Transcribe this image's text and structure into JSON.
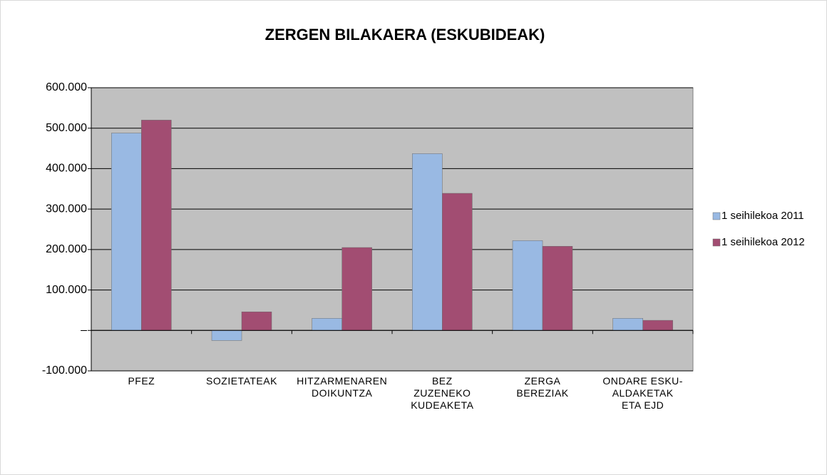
{
  "chart_data": {
    "type": "bar",
    "title": "ZERGEN BILAKAERA (ESKUBIDEAK)",
    "categories": [
      "PFEZ",
      "SOZIETATEAK",
      "HITZARMENAREN\nDOIKUNTZA",
      "BEZ\nZUZENEKO\nKUDEAKETA",
      "ZERGA\nBEREZIAK",
      "ONDARE ESKU-\nALDAKETAK\nETA EJD"
    ],
    "series": [
      {
        "name": "1 seihilekoa 2011",
        "color": "#99b9e3",
        "values": [
          488000,
          -25000,
          30000,
          437000,
          222000,
          30000
        ]
      },
      {
        "name": "1 seihilekoa 2012",
        "color": "#a24d72",
        "values": [
          520000,
          46000,
          205000,
          339000,
          208000,
          25000
        ]
      }
    ],
    "ylim": [
      -100000,
      600000
    ],
    "yticks": [
      {
        "value": -100000,
        "label": "-100.000"
      },
      {
        "value": 0,
        "label": "–"
      },
      {
        "value": 100000,
        "label": "100.000"
      },
      {
        "value": 200000,
        "label": "200.000"
      },
      {
        "value": 300000,
        "label": "300.000"
      },
      {
        "value": 400000,
        "label": "400.000"
      },
      {
        "value": 500000,
        "label": "500.000"
      },
      {
        "value": 600000,
        "label": "600.000"
      }
    ],
    "grid": true,
    "legend": "right",
    "plot_background": "#c0c0c0"
  }
}
